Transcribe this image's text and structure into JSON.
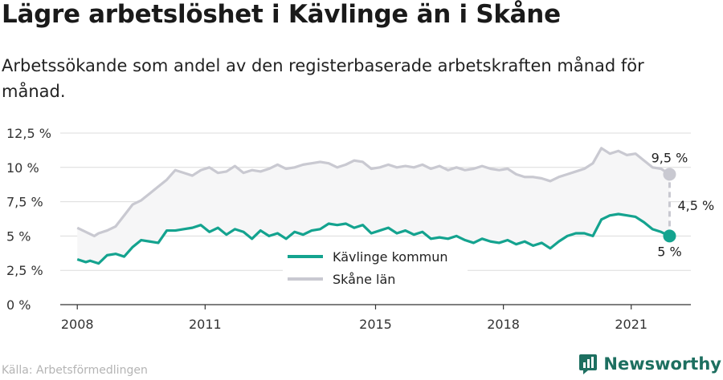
{
  "header": {
    "title": "Lägre arbetslöshet i Kävlinge än i Skåne",
    "subtitle": "Arbetssökande som andel av den registerbaserade arbetskraften månad för månad."
  },
  "footer": {
    "source": "Källa: Arbetsförmedlingen",
    "brand": "Newsworthy",
    "brand_icon": "newsworthy-logo-icon"
  },
  "colors": {
    "kavlinge": "#14a38f",
    "skane": "#c9c9d1",
    "fill": "#f6f6f7",
    "grid": "#dcdcdc"
  },
  "chart_data": {
    "type": "line",
    "x_unit": "year",
    "xlim": [
      2007.6,
      2022.4
    ],
    "ylim": [
      0,
      12.5
    ],
    "x_ticks": [
      2008,
      2011,
      2015,
      2018,
      2021
    ],
    "x_tick_labels": [
      "2008",
      "2011",
      "2015",
      "2018",
      "2021"
    ],
    "y_ticks": [
      0,
      2.5,
      5,
      7.5,
      10,
      12.5
    ],
    "y_tick_labels": [
      "0 %",
      "2,5 %",
      "5 %",
      "7,5 %",
      "10 %",
      "12,5 %"
    ],
    "grid": "horizontal",
    "legend_position": "bottom-center",
    "series": [
      {
        "name": "Kävlinge kommun",
        "color": "#14a38f",
        "points": [
          [
            2008.0,
            3.3
          ],
          [
            2008.2,
            3.1
          ],
          [
            2008.3,
            3.2
          ],
          [
            2008.5,
            3.0
          ],
          [
            2008.7,
            3.6
          ],
          [
            2008.9,
            3.7
          ],
          [
            2009.1,
            3.5
          ],
          [
            2009.3,
            4.2
          ],
          [
            2009.5,
            4.7
          ],
          [
            2009.7,
            4.6
          ],
          [
            2009.9,
            4.5
          ],
          [
            2010.1,
            5.4
          ],
          [
            2010.3,
            5.4
          ],
          [
            2010.5,
            5.5
          ],
          [
            2010.7,
            5.6
          ],
          [
            2010.9,
            5.8
          ],
          [
            2011.1,
            5.3
          ],
          [
            2011.3,
            5.6
          ],
          [
            2011.5,
            5.1
          ],
          [
            2011.7,
            5.5
          ],
          [
            2011.9,
            5.3
          ],
          [
            2012.1,
            4.8
          ],
          [
            2012.3,
            5.4
          ],
          [
            2012.5,
            5.0
          ],
          [
            2012.7,
            5.2
          ],
          [
            2012.9,
            4.8
          ],
          [
            2013.1,
            5.3
          ],
          [
            2013.3,
            5.1
          ],
          [
            2013.5,
            5.4
          ],
          [
            2013.7,
            5.5
          ],
          [
            2013.9,
            5.9
          ],
          [
            2014.1,
            5.8
          ],
          [
            2014.3,
            5.9
          ],
          [
            2014.5,
            5.6
          ],
          [
            2014.7,
            5.8
          ],
          [
            2014.9,
            5.2
          ],
          [
            2015.1,
            5.4
          ],
          [
            2015.3,
            5.6
          ],
          [
            2015.5,
            5.2
          ],
          [
            2015.7,
            5.4
          ],
          [
            2015.9,
            5.1
          ],
          [
            2016.1,
            5.3
          ],
          [
            2016.3,
            4.8
          ],
          [
            2016.5,
            4.9
          ],
          [
            2016.7,
            4.8
          ],
          [
            2016.9,
            5.0
          ],
          [
            2017.1,
            4.7
          ],
          [
            2017.3,
            4.5
          ],
          [
            2017.5,
            4.8
          ],
          [
            2017.7,
            4.6
          ],
          [
            2017.9,
            4.5
          ],
          [
            2018.1,
            4.7
          ],
          [
            2018.3,
            4.4
          ],
          [
            2018.5,
            4.6
          ],
          [
            2018.7,
            4.3
          ],
          [
            2018.9,
            4.5
          ],
          [
            2019.1,
            4.1
          ],
          [
            2019.3,
            4.6
          ],
          [
            2019.5,
            5.0
          ],
          [
            2019.7,
            5.2
          ],
          [
            2019.9,
            5.2
          ],
          [
            2020.1,
            5.0
          ],
          [
            2020.3,
            6.2
          ],
          [
            2020.5,
            6.5
          ],
          [
            2020.7,
            6.6
          ],
          [
            2020.9,
            6.5
          ],
          [
            2021.1,
            6.4
          ],
          [
            2021.3,
            6.0
          ],
          [
            2021.5,
            5.5
          ],
          [
            2021.7,
            5.3
          ],
          [
            2021.9,
            5.0
          ]
        ]
      },
      {
        "name": "Skåne län",
        "color": "#c9c9d1",
        "points": [
          [
            2008.0,
            5.6
          ],
          [
            2008.2,
            5.3
          ],
          [
            2008.4,
            5.0
          ],
          [
            2008.5,
            5.2
          ],
          [
            2008.7,
            5.4
          ],
          [
            2008.9,
            5.7
          ],
          [
            2009.1,
            6.5
          ],
          [
            2009.3,
            7.3
          ],
          [
            2009.5,
            7.6
          ],
          [
            2009.7,
            8.1
          ],
          [
            2009.9,
            8.6
          ],
          [
            2010.1,
            9.1
          ],
          [
            2010.3,
            9.8
          ],
          [
            2010.5,
            9.6
          ],
          [
            2010.7,
            9.4
          ],
          [
            2010.9,
            9.8
          ],
          [
            2011.1,
            10.0
          ],
          [
            2011.3,
            9.6
          ],
          [
            2011.5,
            9.7
          ],
          [
            2011.7,
            10.1
          ],
          [
            2011.9,
            9.6
          ],
          [
            2012.1,
            9.8
          ],
          [
            2012.3,
            9.7
          ],
          [
            2012.5,
            9.9
          ],
          [
            2012.7,
            10.2
          ],
          [
            2012.9,
            9.9
          ],
          [
            2013.1,
            10.0
          ],
          [
            2013.3,
            10.2
          ],
          [
            2013.5,
            10.3
          ],
          [
            2013.7,
            10.4
          ],
          [
            2013.9,
            10.3
          ],
          [
            2014.1,
            10.0
          ],
          [
            2014.3,
            10.2
          ],
          [
            2014.5,
            10.5
          ],
          [
            2014.7,
            10.4
          ],
          [
            2014.9,
            9.9
          ],
          [
            2015.1,
            10.0
          ],
          [
            2015.3,
            10.2
          ],
          [
            2015.5,
            10.0
          ],
          [
            2015.7,
            10.1
          ],
          [
            2015.9,
            10.0
          ],
          [
            2016.1,
            10.2
          ],
          [
            2016.3,
            9.9
          ],
          [
            2016.5,
            10.1
          ],
          [
            2016.7,
            9.8
          ],
          [
            2016.9,
            10.0
          ],
          [
            2017.1,
            9.8
          ],
          [
            2017.3,
            9.9
          ],
          [
            2017.5,
            10.1
          ],
          [
            2017.7,
            9.9
          ],
          [
            2017.9,
            9.8
          ],
          [
            2018.1,
            9.9
          ],
          [
            2018.3,
            9.5
          ],
          [
            2018.5,
            9.3
          ],
          [
            2018.7,
            9.3
          ],
          [
            2018.9,
            9.2
          ],
          [
            2019.1,
            9.0
          ],
          [
            2019.3,
            9.3
          ],
          [
            2019.5,
            9.5
          ],
          [
            2019.7,
            9.7
          ],
          [
            2019.9,
            9.9
          ],
          [
            2020.1,
            10.3
          ],
          [
            2020.3,
            11.4
          ],
          [
            2020.5,
            11.0
          ],
          [
            2020.7,
            11.2
          ],
          [
            2020.9,
            10.9
          ],
          [
            2021.1,
            11.0
          ],
          [
            2021.3,
            10.5
          ],
          [
            2021.5,
            10.0
          ],
          [
            2021.7,
            9.9
          ],
          [
            2021.9,
            9.5
          ]
        ]
      }
    ],
    "end_labels": {
      "kavlinge": "5 %",
      "skane": "9,5 %",
      "difference": "4,5 %"
    }
  }
}
